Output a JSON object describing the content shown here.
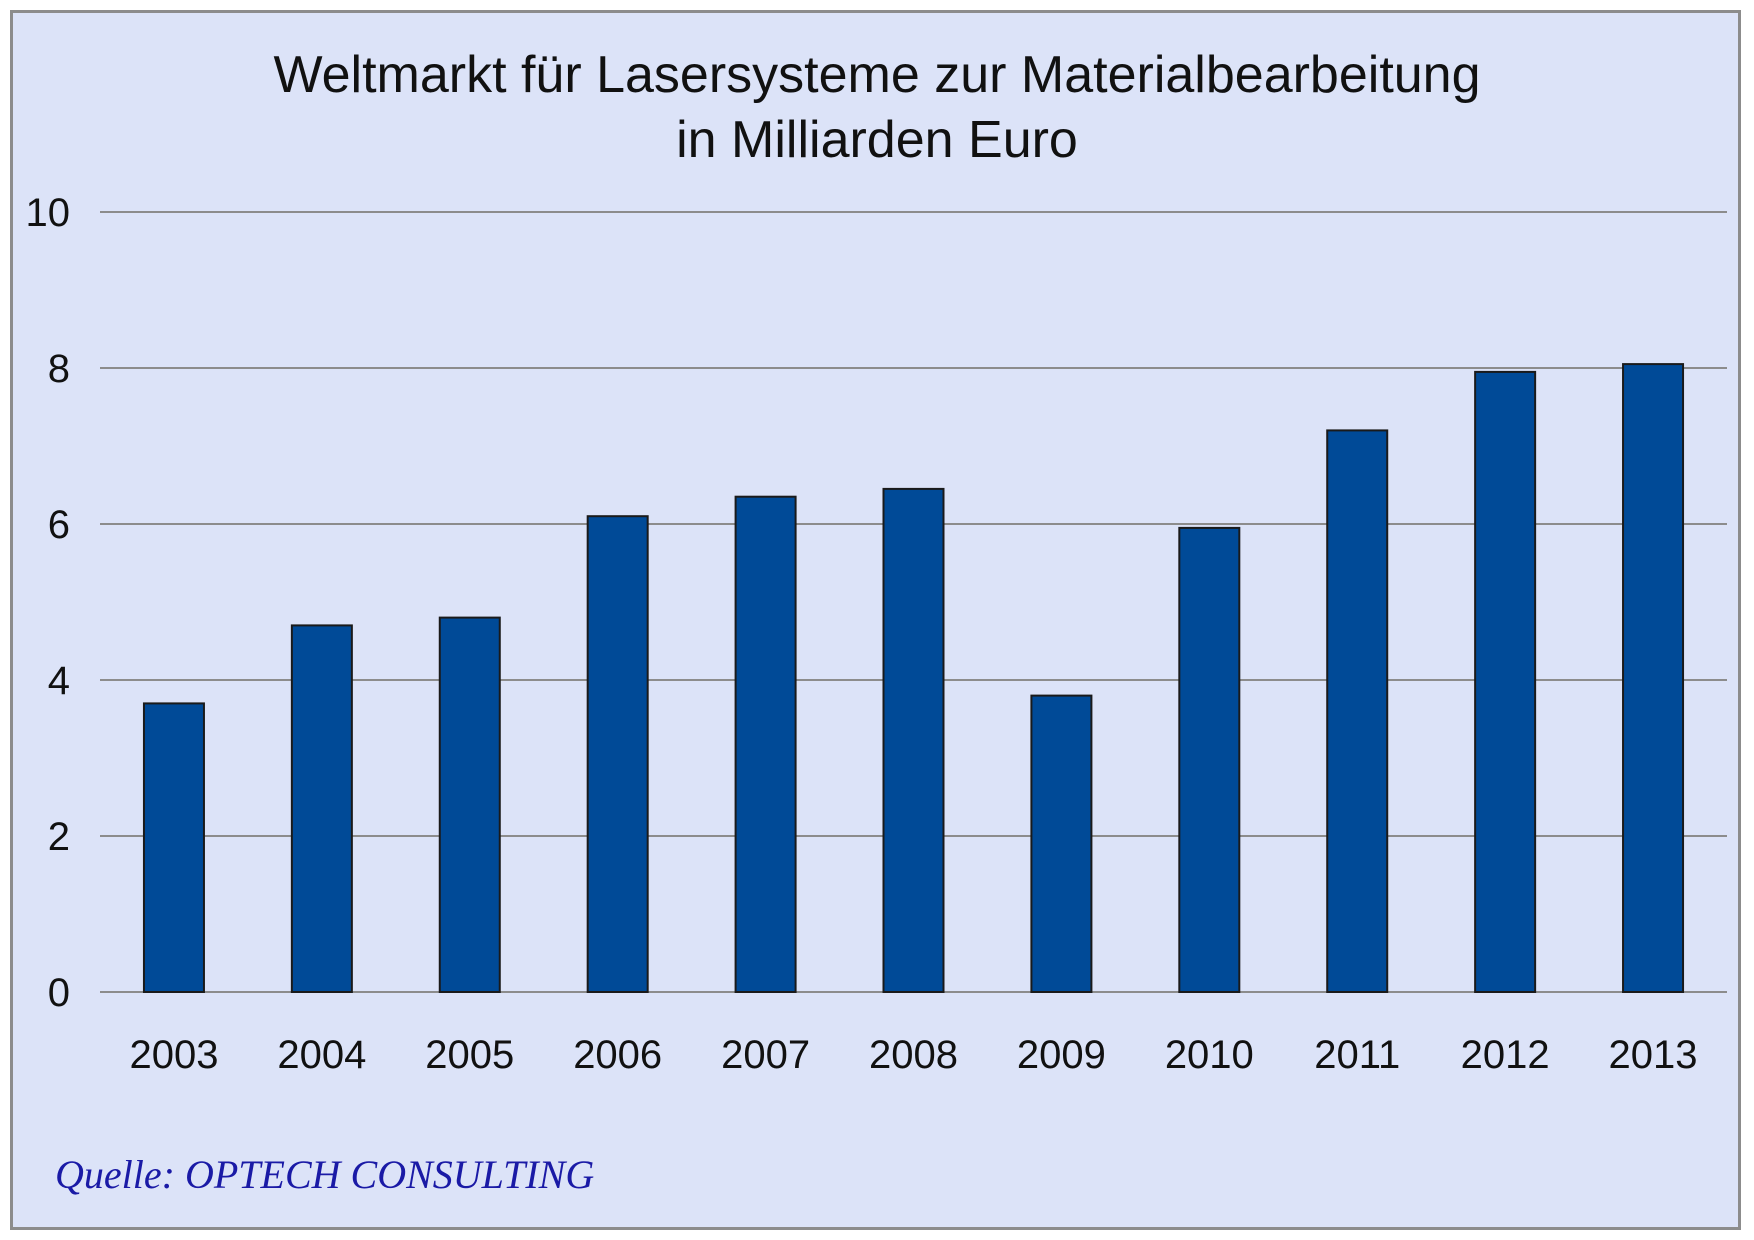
{
  "chart_data": {
    "type": "bar",
    "title": "Weltmarkt für Lasersysteme zur Materialbearbeitung",
    "subtitle": "in Milliarden Euro",
    "xlabel": "",
    "ylabel": "",
    "categories": [
      "2003",
      "2004",
      "2005",
      "2006",
      "2007",
      "2008",
      "2009",
      "2010",
      "2011",
      "2012",
      "2013"
    ],
    "values": [
      3.7,
      4.7,
      4.8,
      6.1,
      6.35,
      6.45,
      3.8,
      5.95,
      7.2,
      7.95,
      8.05
    ],
    "ylim": [
      0,
      10
    ],
    "yticks": [
      "0",
      "2",
      "4",
      "6",
      "8",
      "10"
    ],
    "grid": true,
    "legend": "none",
    "colors": {
      "bar": "#004a97",
      "bar_outline": "#1a1a1a",
      "background": "#dce3f8",
      "grid": "#8c8c8c"
    }
  },
  "source_note": "Quelle: OPTECH CONSULTING"
}
